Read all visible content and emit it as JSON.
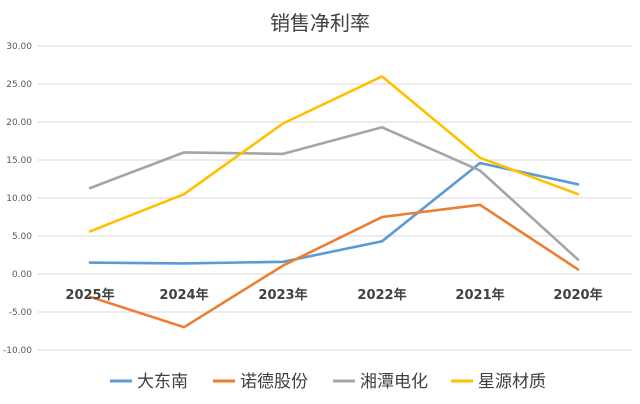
{
  "chart_data": {
    "type": "line",
    "title": "销售净利率",
    "categories": [
      "2025年",
      "2024年",
      "2023年",
      "2022年",
      "2021年",
      "2020年"
    ],
    "ylim": [
      -10,
      30
    ],
    "yticks": [
      "-10.00",
      "-5.00",
      "0.00",
      "5.00",
      "10.00",
      "15.00",
      "20.00",
      "25.00",
      "30.00"
    ],
    "ytick_values": [
      -10,
      -5,
      0,
      5,
      10,
      15,
      20,
      25,
      30
    ],
    "grid": true,
    "legend_position": "bottom",
    "series": [
      {
        "name": "大东南",
        "color": "#5B9BD5",
        "values": [
          1.5,
          1.4,
          1.6,
          4.3,
          14.6,
          11.8
        ]
      },
      {
        "name": "诺德股份",
        "color": "#ED7D31",
        "values": [
          -3.0,
          -7.0,
          1.1,
          7.5,
          9.1,
          0.6
        ]
      },
      {
        "name": "湘潭电化",
        "color": "#A5A5A5",
        "values": [
          11.3,
          16.0,
          15.8,
          19.3,
          13.6,
          1.9
        ]
      },
      {
        "name": "星源材质",
        "color": "#FFC000",
        "values": [
          5.6,
          10.5,
          19.8,
          26.0,
          15.3,
          10.5
        ]
      }
    ]
  }
}
